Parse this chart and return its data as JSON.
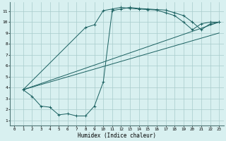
{
  "xlabel": "Humidex (Indice chaleur)",
  "bg_color": "#d8f0f0",
  "grid_color": "#a8cccc",
  "line_color": "#1a6060",
  "xlim": [
    -0.5,
    23.5
  ],
  "ylim": [
    0.5,
    11.8
  ],
  "xticks": [
    0,
    1,
    2,
    3,
    4,
    5,
    6,
    7,
    8,
    9,
    10,
    11,
    12,
    13,
    14,
    15,
    16,
    17,
    18,
    19,
    20,
    21,
    22,
    23
  ],
  "yticks": [
    1,
    2,
    3,
    4,
    5,
    6,
    7,
    8,
    9,
    10,
    11
  ],
  "curve1_x": [
    1,
    2,
    3,
    4,
    5,
    6,
    7,
    8,
    9,
    10,
    11,
    12,
    13,
    14,
    15,
    16,
    17,
    18,
    19,
    20,
    21,
    22,
    23
  ],
  "curve1_y": [
    3.8,
    3.2,
    2.3,
    2.2,
    1.5,
    1.6,
    1.4,
    1.4,
    2.3,
    4.5,
    11.05,
    11.2,
    11.35,
    11.25,
    11.2,
    11.15,
    11.1,
    10.85,
    10.6,
    10.0,
    9.3,
    9.85,
    10.0
  ],
  "curve2_x": [
    1,
    8,
    9,
    10,
    11,
    12,
    13,
    14,
    15,
    16,
    17,
    18,
    19,
    20,
    21,
    22,
    23
  ],
  "curve2_y": [
    3.8,
    9.5,
    9.75,
    11.05,
    11.2,
    11.35,
    11.25,
    11.2,
    11.15,
    11.1,
    10.85,
    10.6,
    10.0,
    9.3,
    9.85,
    10.0,
    10.0
  ],
  "curve3_x": [
    1,
    23
  ],
  "curve3_y": [
    3.8,
    10.0
  ],
  "curve4_x": [
    1,
    23
  ],
  "curve4_y": [
    3.8,
    9.0
  ]
}
